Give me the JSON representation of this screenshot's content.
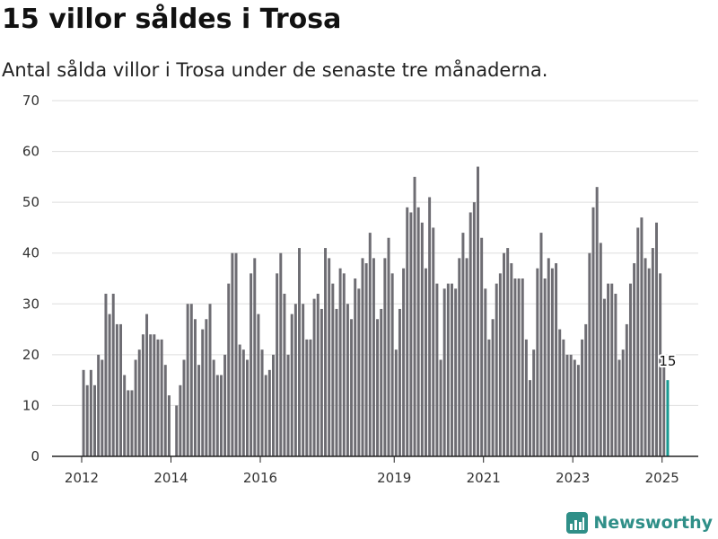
{
  "page": {
    "title": "15 villor såldes i Trosa",
    "subtitle": "Antal sålda villor i Trosa under de senaste tre månaderna.",
    "brand": "Newsworthy"
  },
  "colors": {
    "bar": "#6e6d73",
    "highlight": "#1a9a92",
    "grid": "#dddddd",
    "axis": "#222222",
    "brand": "#2f8f88"
  },
  "chart_data": {
    "type": "bar",
    "title": "15 villor såldes i Trosa",
    "subtitle": "Antal sålda villor i Trosa under de senaste tre månaderna.",
    "ylim": [
      0,
      70
    ],
    "yticks": [
      0,
      10,
      20,
      30,
      40,
      50,
      60,
      70
    ],
    "xticks": [
      "2012",
      "2014",
      "2016",
      "2019",
      "2021",
      "2023",
      "2025"
    ],
    "grid": true,
    "start_month": "2012-01",
    "values": [
      17,
      14,
      17,
      14,
      20,
      19,
      32,
      28,
      32,
      26,
      26,
      16,
      13,
      13,
      19,
      21,
      24,
      28,
      24,
      24,
      23,
      23,
      18,
      12,
      null,
      10,
      14,
      19,
      30,
      30,
      27,
      18,
      25,
      27,
      30,
      19,
      16,
      16,
      20,
      34,
      40,
      40,
      22,
      21,
      19,
      36,
      39,
      28,
      21,
      16,
      17,
      20,
      36,
      40,
      32,
      20,
      28,
      30,
      41,
      30,
      23,
      23,
      31,
      32,
      29,
      41,
      39,
      34,
      29,
      37,
      36,
      30,
      27,
      35,
      33,
      39,
      38,
      44,
      39,
      27,
      29,
      39,
      43,
      36,
      21,
      29,
      37,
      49,
      48,
      55,
      49,
      46,
      37,
      51,
      45,
      34,
      19,
      33,
      34,
      34,
      33,
      39,
      44,
      39,
      48,
      50,
      57,
      43,
      33,
      23,
      27,
      34,
      36,
      40,
      41,
      38,
      35,
      35,
      35,
      23,
      15,
      21,
      37,
      44,
      35,
      39,
      37,
      38,
      25,
      23,
      20,
      20,
      19,
      18,
      23,
      26,
      40,
      49,
      53,
      42,
      31,
      34,
      34,
      32,
      19,
      21,
      26,
      34,
      38,
      45,
      47,
      39,
      37,
      41,
      46,
      36,
      18,
      15
    ],
    "highlight_last": true,
    "last_label": "15"
  }
}
